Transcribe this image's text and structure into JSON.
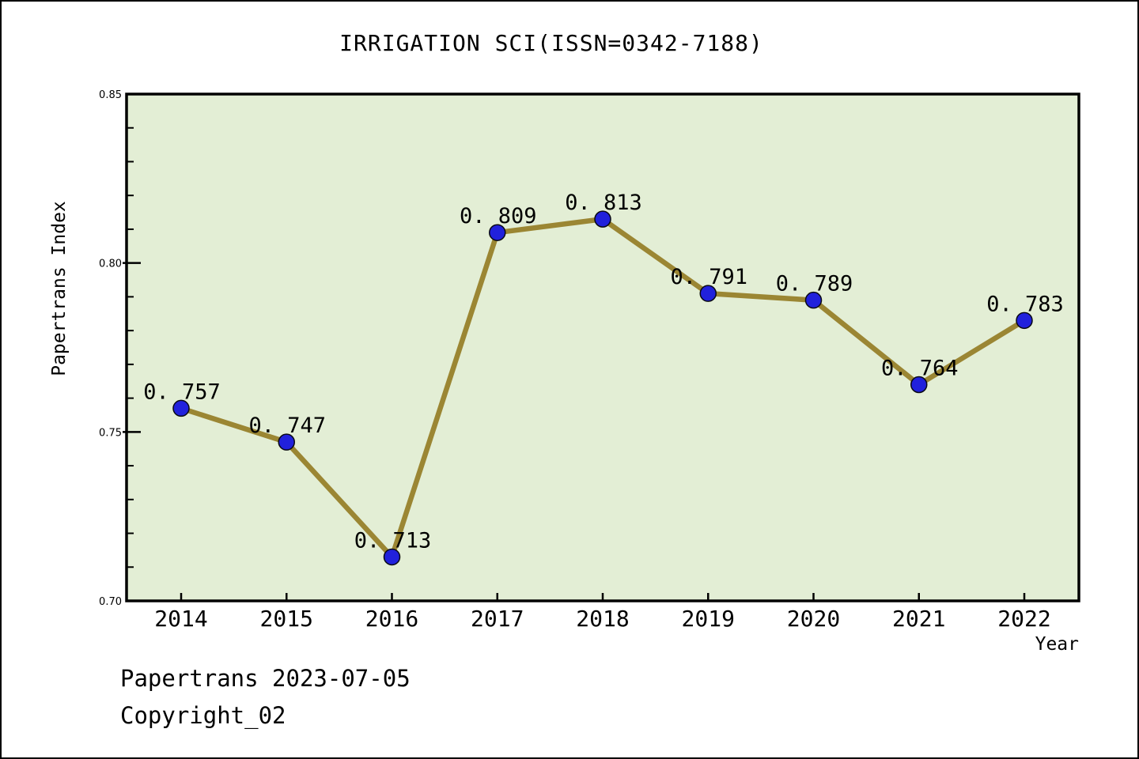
{
  "title": "IRRIGATION SCI(ISSN=0342-7188)",
  "footer": {
    "line1": "Papertrans 2023-07-05",
    "line2": "Copyright_02"
  },
  "chart_data": {
    "type": "line",
    "title": "IRRIGATION SCI(ISSN=0342-7188)",
    "x": [
      2014,
      2015,
      2016,
      2017,
      2018,
      2019,
      2020,
      2021,
      2022
    ],
    "values": [
      0.757,
      0.747,
      0.713,
      0.809,
      0.813,
      0.791,
      0.789,
      0.764,
      0.783
    ],
    "point_labels": [
      "0. 757",
      "0. 747",
      "0. 713",
      "0. 809",
      "0. 813",
      "0. 791",
      "0. 789",
      "0. 764",
      "0. 783"
    ],
    "xlabel": "Year",
    "ylabel": "Papertrans Index",
    "ylim": [
      0.7,
      0.85
    ],
    "ytick_major_values": [
      0.7,
      0.75,
      0.8,
      0.85
    ],
    "ytick_major_labels": [
      "0.70",
      "0.75",
      "0.80",
      "0.85"
    ],
    "ytick_minor_step": 0.01,
    "grid": false,
    "legend": "none",
    "colors": {
      "line": "#9b8633",
      "marker_fill": "#2121dc",
      "marker_edge": "#0a0a14",
      "plot_background": "#e3eed5",
      "frame": "#000000",
      "text": "#000000"
    }
  }
}
